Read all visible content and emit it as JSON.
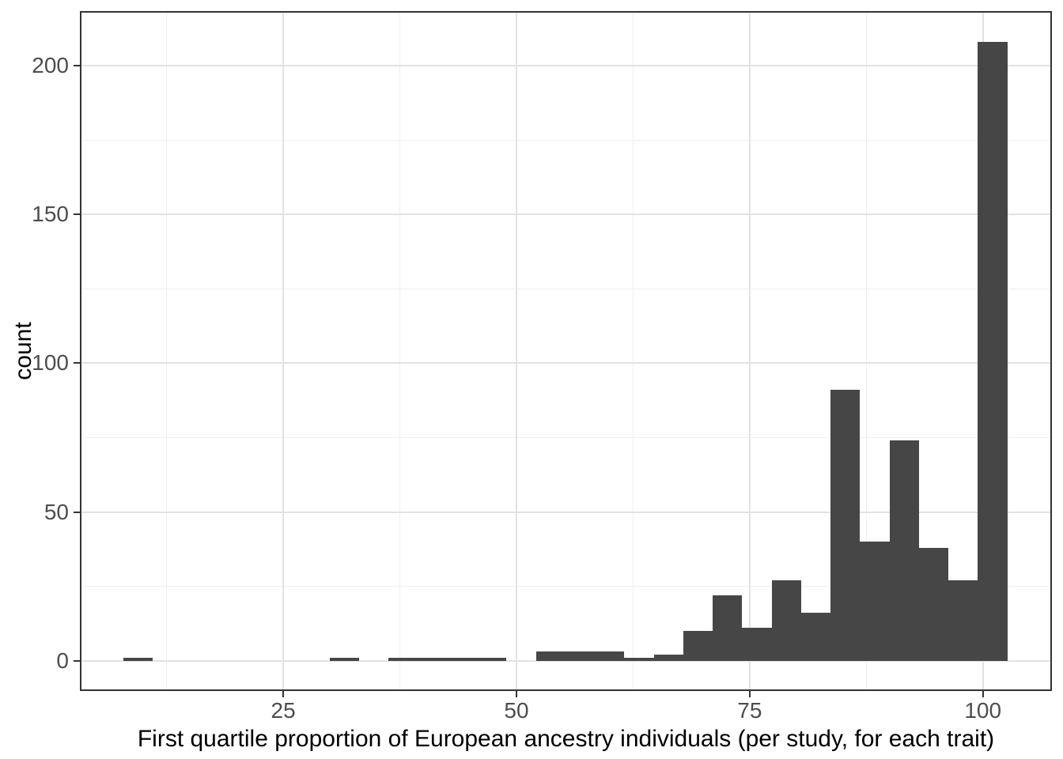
{
  "figure": {
    "background_color": "#ffffff"
  },
  "chart_data": {
    "type": "bar",
    "subtype": "histogram",
    "title": "",
    "xlabel": "First quartile proportion of European ancestry individuals (per study, for each trait)",
    "ylabel": "count",
    "grid": true,
    "legend": false,
    "xlim": [
      3.2,
      107.4
    ],
    "ylim": [
      -10.2,
      218.4
    ],
    "x_major_ticks": [
      25,
      50,
      75,
      100
    ],
    "x_tick_labels": [
      "25",
      "50",
      "75",
      "100"
    ],
    "x_minor_gridlines": [
      12.5,
      37.5,
      62.5,
      87.5
    ],
    "y_major_ticks": [
      0,
      50,
      100,
      150,
      200
    ],
    "y_tick_labels": [
      "0",
      "50",
      "100",
      "150",
      "200"
    ],
    "y_minor_gridlines": [
      25,
      75,
      125,
      175
    ],
    "bin_start": 7.88,
    "bin_width": 3.158,
    "counts": [
      1,
      0,
      0,
      0,
      0,
      0,
      0,
      1,
      0,
      1,
      1,
      1,
      1,
      0,
      3,
      3,
      3,
      1,
      2,
      10,
      22,
      11,
      27,
      16,
      91,
      40,
      74,
      38,
      27,
      208
    ],
    "colors": {
      "bar_fill": "#464646",
      "panel_border": "#333333",
      "grid_major": "#e2e2e2",
      "grid_minor": "#efefef",
      "tick_mark": "#333333",
      "tick_label": "#4d4d4d",
      "axis_title": "#000000"
    }
  }
}
